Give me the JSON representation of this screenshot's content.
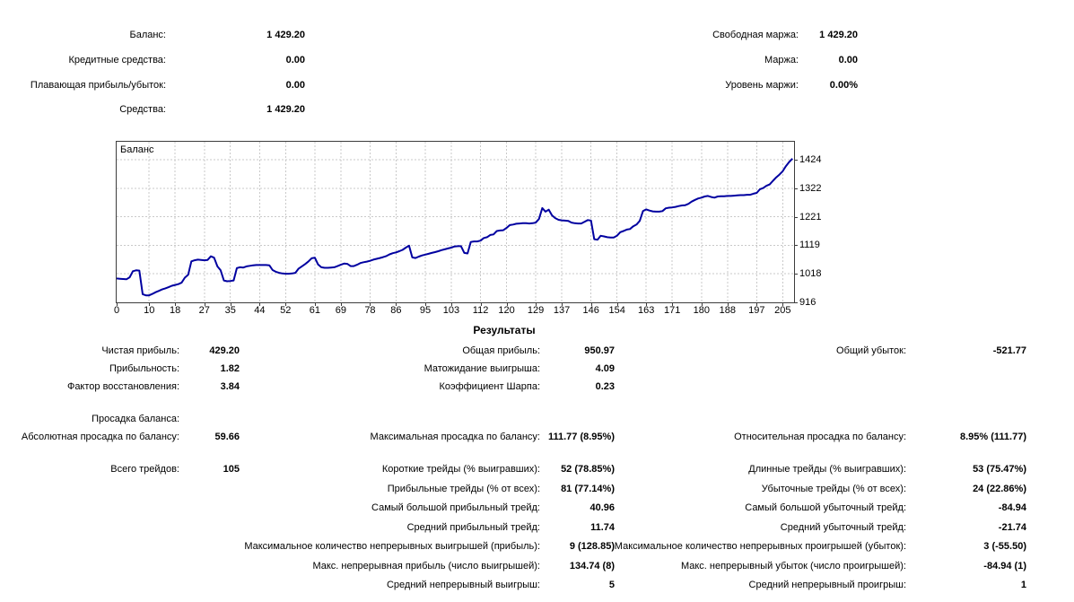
{
  "account_summary": {
    "left": [
      {
        "label": "Баланс:",
        "value": "1 429.20"
      },
      {
        "label": "Кредитные средства:",
        "value": "0.00"
      },
      {
        "label": "Плавающая прибыль/убыток:",
        "value": "0.00"
      },
      {
        "label": "Средства:",
        "value": "1 429.20"
      }
    ],
    "right": [
      {
        "label": "Свободная маржа:",
        "value": "1 429.20"
      },
      {
        "label": "Маржа:",
        "value": "0.00"
      },
      {
        "label": "Уровень маржи:",
        "value": "0.00%"
      }
    ]
  },
  "chart_data": {
    "type": "line",
    "title": "Баланс",
    "xlabel": "",
    "ylabel": "",
    "x_ticks": [
      0,
      10,
      18,
      27,
      35,
      44,
      52,
      61,
      69,
      78,
      86,
      95,
      103,
      112,
      120,
      129,
      137,
      146,
      154,
      163,
      171,
      180,
      188,
      197,
      205
    ],
    "y_ticks": [
      916,
      1018,
      1119,
      1221,
      1322,
      1424
    ],
    "xlim": [
      0,
      208.5
    ],
    "ylim": [
      916,
      1488
    ],
    "grid": "dashed",
    "line_color": "#0000A0",
    "grid_color": "#c9c9c9",
    "series": [
      {
        "name": "Баланс",
        "points": [
          [
            0,
            1001
          ],
          [
            1,
            1000
          ],
          [
            2,
            999
          ],
          [
            3,
            998
          ],
          [
            4,
            1005
          ],
          [
            5,
            1027
          ],
          [
            6,
            1030
          ],
          [
            7,
            1029
          ],
          [
            8,
            945
          ],
          [
            9,
            941
          ],
          [
            10,
            941
          ],
          [
            11,
            946
          ],
          [
            12,
            952
          ],
          [
            13,
            957
          ],
          [
            14,
            962
          ],
          [
            15,
            966
          ],
          [
            16,
            970
          ],
          [
            17,
            975
          ],
          [
            18,
            978
          ],
          [
            19,
            981
          ],
          [
            20,
            986
          ],
          [
            21,
            1004
          ],
          [
            22,
            1014
          ],
          [
            23,
            1062
          ],
          [
            24,
            1066
          ],
          [
            25,
            1068
          ],
          [
            26,
            1067
          ],
          [
            27,
            1066
          ],
          [
            28,
            1067
          ],
          [
            29,
            1080
          ],
          [
            30,
            1075
          ],
          [
            31,
            1044
          ],
          [
            32,
            1030
          ],
          [
            33,
            994
          ],
          [
            34,
            991
          ],
          [
            35,
            992
          ],
          [
            36,
            994
          ],
          [
            37,
            1038
          ],
          [
            38,
            1041
          ],
          [
            39,
            1040
          ],
          [
            40,
            1044
          ],
          [
            41,
            1046
          ],
          [
            42,
            1048
          ],
          [
            43,
            1049
          ],
          [
            44,
            1049
          ],
          [
            45,
            1049
          ],
          [
            46,
            1049
          ],
          [
            47,
            1048
          ],
          [
            48,
            1031
          ],
          [
            49,
            1025
          ],
          [
            50,
            1021
          ],
          [
            51,
            1019
          ],
          [
            52,
            1018
          ],
          [
            53,
            1018
          ],
          [
            54,
            1019
          ],
          [
            55,
            1021
          ],
          [
            56,
            1036
          ],
          [
            57,
            1044
          ],
          [
            58,
            1052
          ],
          [
            59,
            1061
          ],
          [
            60,
            1073
          ],
          [
            61,
            1075
          ],
          [
            62,
            1051
          ],
          [
            63,
            1041
          ],
          [
            64,
            1039
          ],
          [
            65,
            1039
          ],
          [
            66,
            1040
          ],
          [
            67,
            1041
          ],
          [
            68,
            1045
          ],
          [
            69,
            1050
          ],
          [
            70,
            1054
          ],
          [
            71,
            1053
          ],
          [
            72,
            1045
          ],
          [
            73,
            1045
          ],
          [
            74,
            1050
          ],
          [
            75,
            1056
          ],
          [
            76,
            1059
          ],
          [
            77,
            1061
          ],
          [
            78,
            1064
          ],
          [
            79,
            1068
          ],
          [
            80,
            1071
          ],
          [
            81,
            1074
          ],
          [
            82,
            1077
          ],
          [
            83,
            1081
          ],
          [
            84,
            1087
          ],
          [
            85,
            1091
          ],
          [
            86,
            1094
          ],
          [
            87,
            1098
          ],
          [
            88,
            1103
          ],
          [
            89,
            1111
          ],
          [
            90,
            1118
          ],
          [
            91,
            1076
          ],
          [
            92,
            1074
          ],
          [
            93,
            1079
          ],
          [
            94,
            1083
          ],
          [
            95,
            1086
          ],
          [
            96,
            1089
          ],
          [
            97,
            1092
          ],
          [
            98,
            1095
          ],
          [
            99,
            1098
          ],
          [
            100,
            1102
          ],
          [
            101,
            1105
          ],
          [
            102,
            1108
          ],
          [
            103,
            1111
          ],
          [
            104,
            1115
          ],
          [
            105,
            1116
          ],
          [
            106,
            1116
          ],
          [
            107,
            1092
          ],
          [
            108,
            1090
          ],
          [
            109,
            1131
          ],
          [
            110,
            1133
          ],
          [
            111,
            1133
          ],
          [
            112,
            1136
          ],
          [
            113,
            1145
          ],
          [
            114,
            1148
          ],
          [
            115,
            1156
          ],
          [
            116,
            1158
          ],
          [
            117,
            1170
          ],
          [
            118,
            1172
          ],
          [
            119,
            1173
          ],
          [
            120,
            1181
          ],
          [
            121,
            1191
          ],
          [
            122,
            1193
          ],
          [
            123,
            1196
          ],
          [
            124,
            1197
          ],
          [
            125,
            1198
          ],
          [
            126,
            1198
          ],
          [
            127,
            1197
          ],
          [
            128,
            1198
          ],
          [
            129,
            1200
          ],
          [
            130,
            1213
          ],
          [
            131,
            1252
          ],
          [
            132,
            1239
          ],
          [
            133,
            1246
          ],
          [
            134,
            1226
          ],
          [
            135,
            1216
          ],
          [
            136,
            1210
          ],
          [
            137,
            1208
          ],
          [
            138,
            1207
          ],
          [
            139,
            1206
          ],
          [
            140,
            1200
          ],
          [
            141,
            1198
          ],
          [
            142,
            1197
          ],
          [
            143,
            1197
          ],
          [
            144,
            1203
          ],
          [
            145,
            1209
          ],
          [
            146,
            1207
          ],
          [
            147,
            1141
          ],
          [
            148,
            1139
          ],
          [
            149,
            1153
          ],
          [
            150,
            1151
          ],
          [
            151,
            1148
          ],
          [
            152,
            1147
          ],
          [
            153,
            1147
          ],
          [
            154,
            1153
          ],
          [
            155,
            1166
          ],
          [
            156,
            1170
          ],
          [
            157,
            1175
          ],
          [
            158,
            1177
          ],
          [
            159,
            1187
          ],
          [
            160,
            1193
          ],
          [
            161,
            1206
          ],
          [
            162,
            1241
          ],
          [
            163,
            1247
          ],
          [
            164,
            1243
          ],
          [
            165,
            1240
          ],
          [
            166,
            1239
          ],
          [
            167,
            1239
          ],
          [
            168,
            1241
          ],
          [
            169,
            1251
          ],
          [
            170,
            1253
          ],
          [
            171,
            1254
          ],
          [
            172,
            1256
          ],
          [
            173,
            1259
          ],
          [
            174,
            1261
          ],
          [
            175,
            1262
          ],
          [
            176,
            1267
          ],
          [
            177,
            1275
          ],
          [
            178,
            1281
          ],
          [
            179,
            1286
          ],
          [
            180,
            1289
          ],
          [
            181,
            1293
          ],
          [
            182,
            1295
          ],
          [
            183,
            1291
          ],
          [
            184,
            1289
          ],
          [
            185,
            1293
          ],
          [
            186,
            1294
          ],
          [
            187,
            1294
          ],
          [
            188,
            1295
          ],
          [
            189,
            1295
          ],
          [
            190,
            1296
          ],
          [
            191,
            1297
          ],
          [
            192,
            1298
          ],
          [
            193,
            1298
          ],
          [
            194,
            1299
          ],
          [
            195,
            1299
          ],
          [
            196,
            1303
          ],
          [
            197,
            1306
          ],
          [
            198,
            1319
          ],
          [
            199,
            1323
          ],
          [
            200,
            1331
          ],
          [
            201,
            1336
          ],
          [
            202,
            1349
          ],
          [
            203,
            1361
          ],
          [
            204,
            1371
          ],
          [
            205,
            1383
          ],
          [
            206,
            1401
          ],
          [
            207,
            1416
          ],
          [
            208,
            1428
          ]
        ]
      }
    ]
  },
  "results": {
    "title": "Результаты",
    "sections": [
      {
        "rows": [
          {
            "cells": [
              {
                "col": "left",
                "label": "Чистая прибыль:",
                "value": "429.20"
              },
              {
                "col": "mid",
                "label": "Общая прибыль:",
                "value": "950.97"
              },
              {
                "col": "right",
                "label": "Общий убыток:",
                "value": "-521.77"
              }
            ]
          },
          {
            "cells": [
              {
                "col": "left",
                "label": "Прибыльность:",
                "value": "1.82"
              },
              {
                "col": "mid",
                "label": "Матожидание выигрыша:",
                "value": "4.09"
              }
            ]
          },
          {
            "cells": [
              {
                "col": "left",
                "label": "Фактор восстановления:",
                "value": "3.84"
              },
              {
                "col": "mid",
                "label": "Коэффициент Шарпа:",
                "value": "0.23"
              }
            ]
          }
        ]
      },
      {
        "rows": [
          {
            "cells": [
              {
                "col": "left",
                "label": "Просадка баланса:",
                "value": ""
              }
            ]
          },
          {
            "cells": [
              {
                "col": "left",
                "label": "Абсолютная просадка по балансу:",
                "value": "59.66"
              },
              {
                "col": "mid",
                "label": "Максимальная просадка по балансу:",
                "value": "111.77 (8.95%)"
              },
              {
                "col": "right",
                "label": "Относительная просадка по балансу:",
                "value": "8.95% (111.77)"
              }
            ]
          }
        ]
      },
      {
        "rows": [
          {
            "cells": [
              {
                "col": "left",
                "label": "Всего трейдов:",
                "value": "105"
              },
              {
                "col": "mid",
                "label": "Короткие трейды (% выигравших):",
                "value": "52 (78.85%)"
              },
              {
                "col": "right",
                "label": "Длинные трейды (% выигравших):",
                "value": "53 (75.47%)"
              }
            ]
          },
          {
            "cells": [
              {
                "col": "mid",
                "label": "Прибыльные трейды (% от всех):",
                "value": "81 (77.14%)"
              },
              {
                "col": "right",
                "label": "Убыточные трейды (% от всех):",
                "value": "24 (22.86%)"
              }
            ]
          },
          {
            "cells": [
              {
                "col": "mid",
                "label": "Самый большой прибыльный трейд:",
                "value": "40.96"
              },
              {
                "col": "right",
                "label": "Самый большой убыточный трейд:",
                "value": "-84.94"
              }
            ]
          },
          {
            "cells": [
              {
                "col": "mid",
                "label": "Средний прибыльный трейд:",
                "value": "11.74"
              },
              {
                "col": "right",
                "label": "Средний убыточный трейд:",
                "value": "-21.74"
              }
            ]
          },
          {
            "cells": [
              {
                "col": "mid",
                "label": "Максимальное количество непрерывных выигрышей (прибыль):",
                "value": "9 (128.85)"
              },
              {
                "col": "right",
                "label": "Максимальное количество непрерывных проигрышей (убыток):",
                "value": "3 (-55.50)"
              }
            ]
          },
          {
            "cells": [
              {
                "col": "mid",
                "label": "Макс. непрерывная прибыль (число выигрышей):",
                "value": "134.74 (8)"
              },
              {
                "col": "right",
                "label": "Макс. непрерывный убыток (число проигрышей):",
                "value": "-84.94 (1)"
              }
            ]
          },
          {
            "cells": [
              {
                "col": "mid",
                "label": "Средний непрерывный выигрыш:",
                "value": "5"
              },
              {
                "col": "right",
                "label": "Средний непрерывный проигрыш:",
                "value": "1"
              }
            ]
          }
        ]
      }
    ]
  }
}
